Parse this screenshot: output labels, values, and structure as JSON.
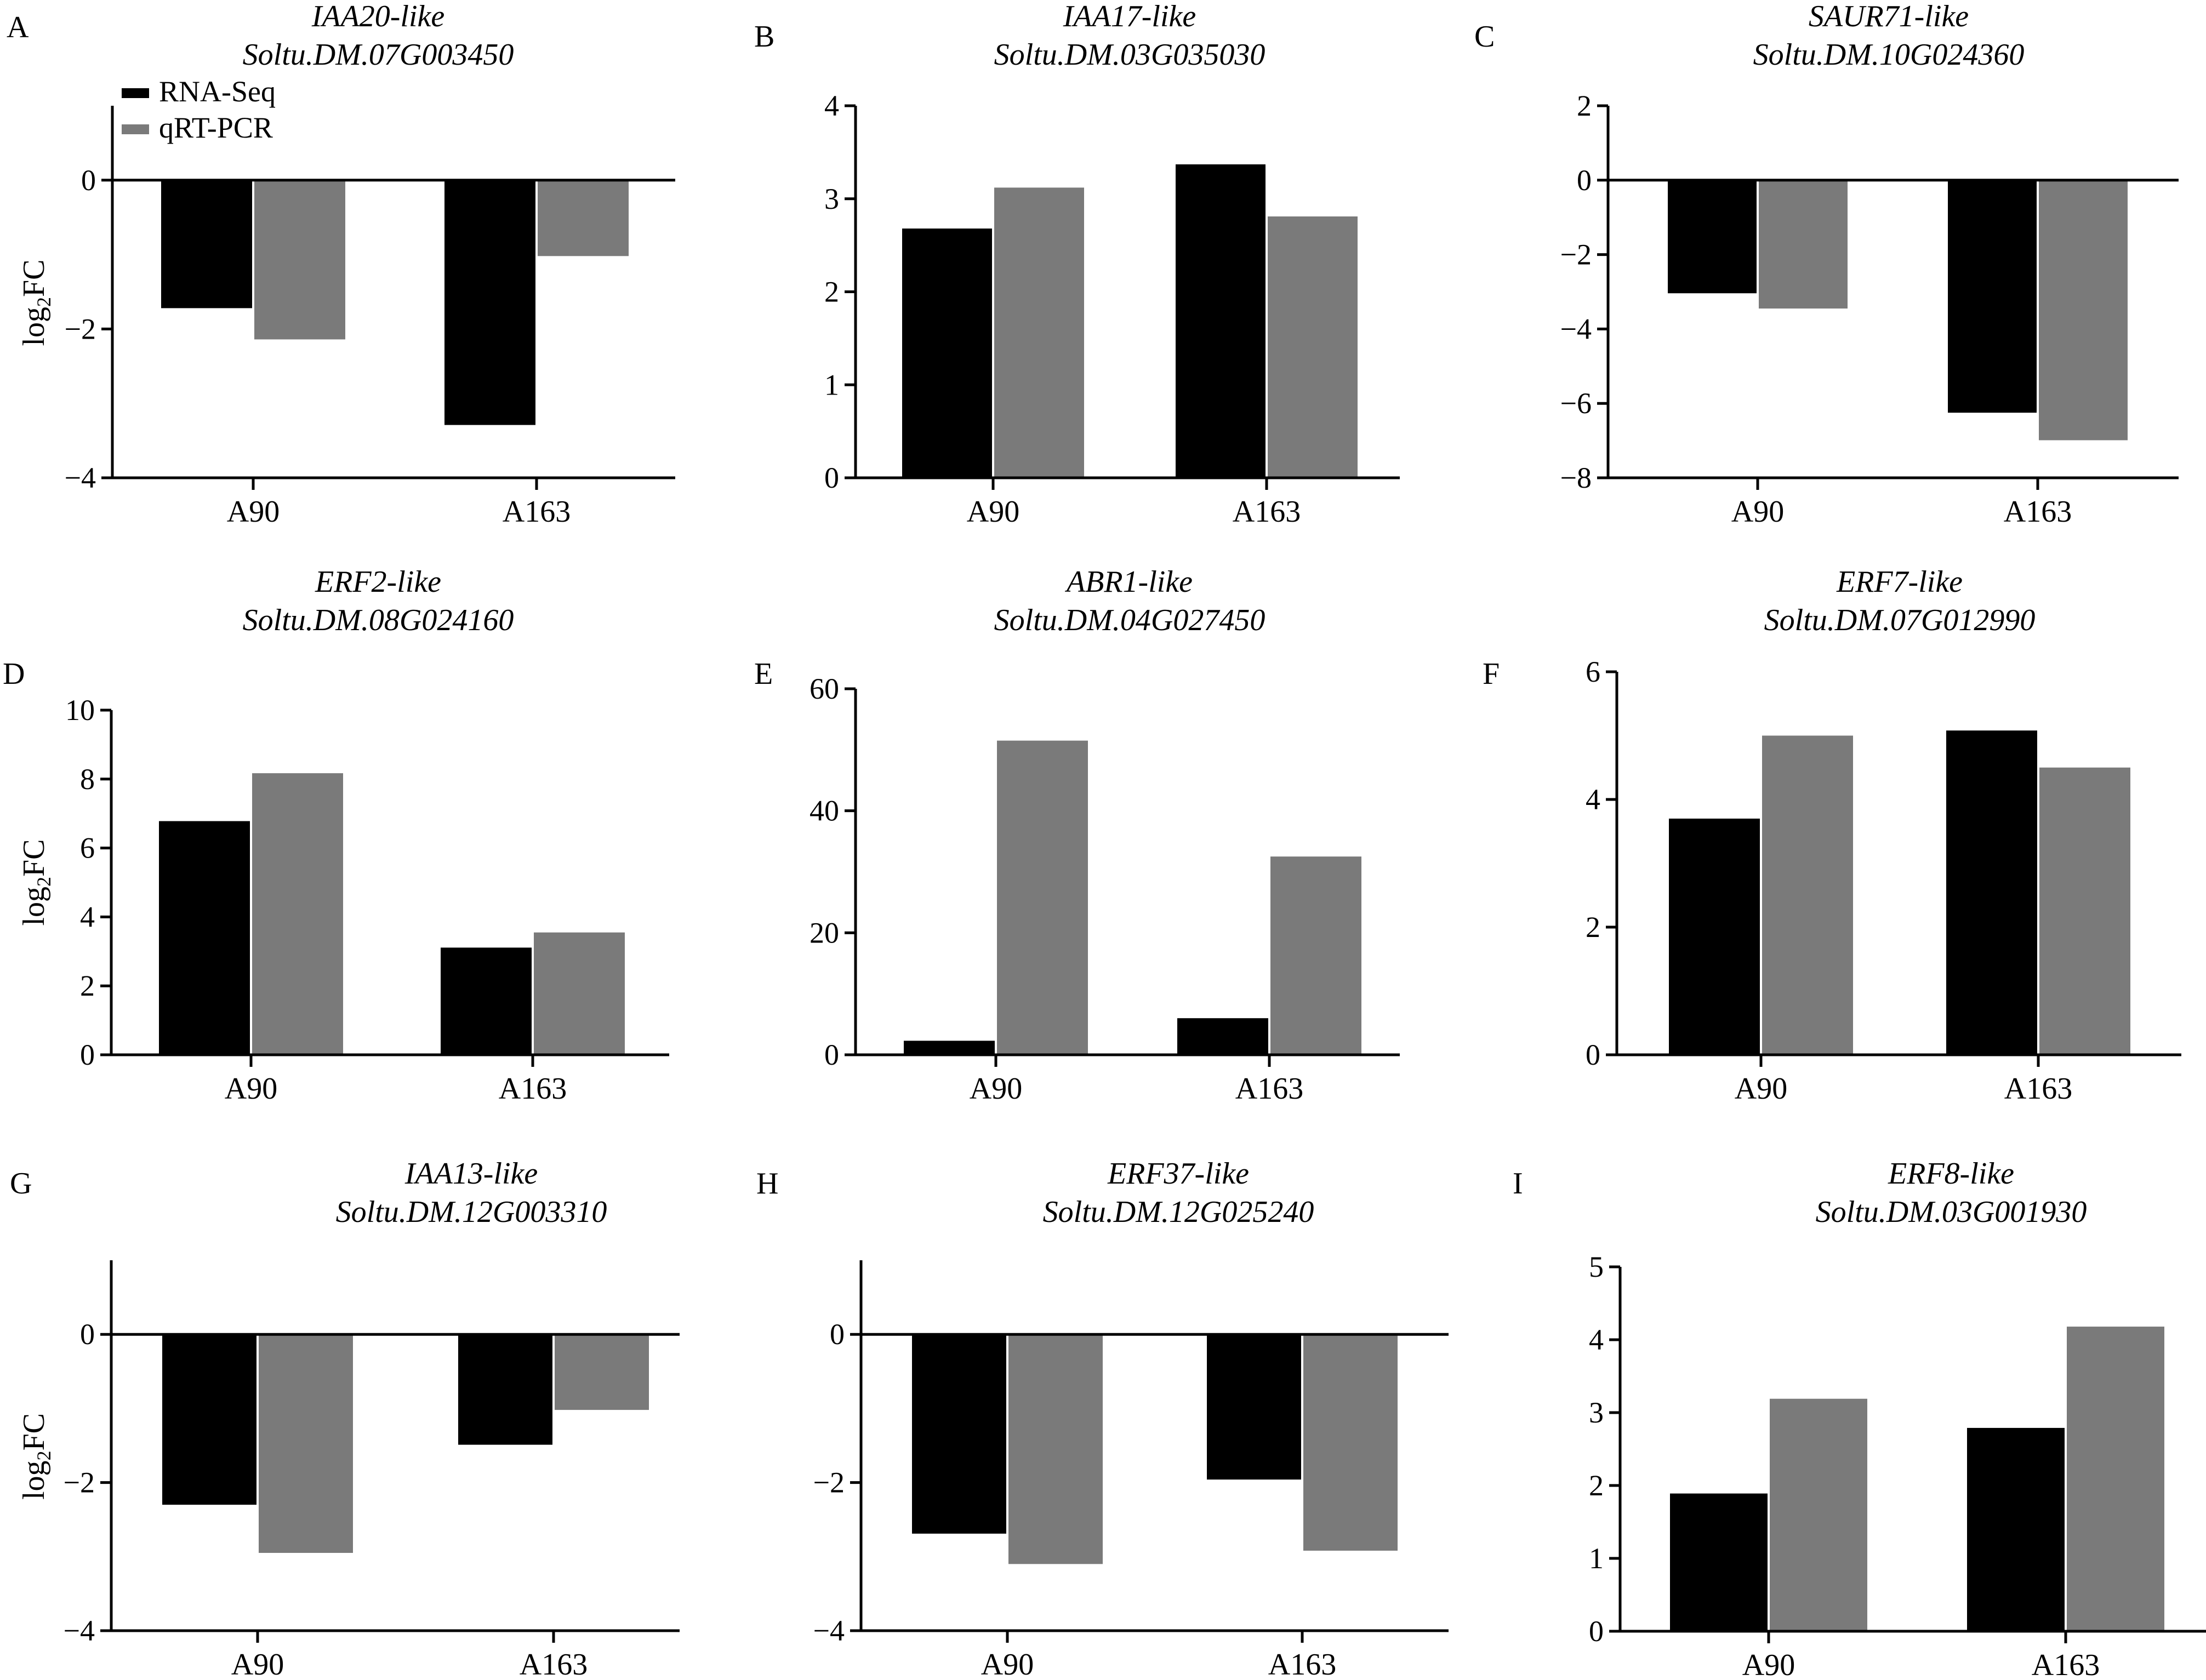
{
  "figure": {
    "legend": {
      "items": [
        {
          "label": "RNA-Seq",
          "color": "#000000"
        },
        {
          "label": "qRT-PCR",
          "color": "#7a7a7a"
        }
      ],
      "placement": "top-left of panel A"
    },
    "ylabel_main": "log",
    "ylabel_sub": "2",
    "ylabel_tail": "FC"
  },
  "chart_data": [
    {
      "panel": "A",
      "type": "bar",
      "title_gene": "IAA20-like",
      "title_id": "Soltu.DM.07G003450",
      "categories": [
        "A90",
        "A163"
      ],
      "ylabel": "log2FC",
      "ylim": [
        -4,
        1
      ],
      "yticks": [
        0,
        -2,
        -4
      ],
      "ytick_labels": [
        "0",
        "−2",
        "−4"
      ],
      "zero_line": true,
      "series": [
        {
          "name": "RNA-Seq",
          "values": [
            -1.72,
            -3.29
          ]
        },
        {
          "name": "qRT-PCR",
          "values": [
            -2.14,
            -1.02
          ]
        }
      ],
      "show_ylabel": true
    },
    {
      "panel": "B",
      "type": "bar",
      "title_gene": "IAA17-like",
      "title_id": "Soltu.DM.03G035030",
      "categories": [
        "A90",
        "A163"
      ],
      "ylabel": "",
      "ylim": [
        0,
        4
      ],
      "yticks": [
        4,
        3,
        2,
        1,
        0
      ],
      "ytick_labels": [
        "4",
        "3",
        "2",
        "1",
        "0"
      ],
      "zero_line": false,
      "series": [
        {
          "name": "RNA-Seq",
          "values": [
            2.68,
            3.37
          ]
        },
        {
          "name": "qRT-PCR",
          "values": [
            3.12,
            2.81
          ]
        }
      ],
      "show_ylabel": false
    },
    {
      "panel": "C",
      "type": "bar",
      "title_gene": "SAUR71-like",
      "title_id": "Soltu.DM.10G024360",
      "categories": [
        "A90",
        "A163"
      ],
      "ylabel": "",
      "ylim": [
        -8,
        2
      ],
      "yticks": [
        2,
        0,
        -2,
        -4,
        -6,
        -8
      ],
      "ytick_labels": [
        "2",
        "0",
        "−2",
        "−4",
        "−6",
        "−8"
      ],
      "zero_line": true,
      "series": [
        {
          "name": "RNA-Seq",
          "values": [
            -3.04,
            -6.25
          ]
        },
        {
          "name": "qRT-PCR",
          "values": [
            -3.45,
            -6.99
          ]
        }
      ],
      "show_ylabel": false
    },
    {
      "panel": "D",
      "type": "bar",
      "title_gene": "ERF2-like",
      "title_id": "Soltu.DM.08G024160",
      "categories": [
        "A90",
        "A163"
      ],
      "ylabel": "log2FC",
      "ylim": [
        0,
        10
      ],
      "yticks": [
        10,
        8,
        6,
        4,
        2,
        0
      ],
      "ytick_labels": [
        "10",
        "8",
        "6",
        "4",
        "2",
        "0"
      ],
      "zero_line": false,
      "series": [
        {
          "name": "RNA-Seq",
          "values": [
            6.78,
            3.11
          ]
        },
        {
          "name": "qRT-PCR",
          "values": [
            8.17,
            3.55
          ]
        }
      ],
      "show_ylabel": true
    },
    {
      "panel": "E",
      "type": "bar",
      "title_gene": "ABR1-like",
      "title_id": "Soltu.DM.04G027450",
      "categories": [
        "A90",
        "A163"
      ],
      "ylabel": "",
      "ylim": [
        0,
        60
      ],
      "yticks": [
        60,
        40,
        20,
        0
      ],
      "ytick_labels": [
        "60",
        "40",
        "20",
        "0"
      ],
      "zero_line": false,
      "series": [
        {
          "name": "RNA-Seq",
          "values": [
            2.3,
            6.0
          ]
        },
        {
          "name": "qRT-PCR",
          "values": [
            51.5,
            32.5
          ]
        }
      ],
      "show_ylabel": false
    },
    {
      "panel": "F",
      "type": "bar",
      "title_gene": "ERF7-like",
      "title_id": "Soltu.DM.07G012990",
      "categories": [
        "A90",
        "A163"
      ],
      "ylabel": "",
      "ylim": [
        0,
        6
      ],
      "yticks": [
        6,
        4,
        2,
        0
      ],
      "ytick_labels": [
        "6",
        "4",
        "2",
        "0"
      ],
      "zero_line": false,
      "series": [
        {
          "name": "RNA-Seq",
          "values": [
            3.7,
            5.08
          ]
        },
        {
          "name": "qRT-PCR",
          "values": [
            5.0,
            4.5
          ]
        }
      ],
      "show_ylabel": false
    },
    {
      "panel": "G",
      "type": "bar",
      "title_gene": "IAA13-like",
      "title_id": "Soltu.DM.12G003310",
      "categories": [
        "A90",
        "A163"
      ],
      "ylabel": "log2FC",
      "ylim": [
        -4,
        1
      ],
      "yticks": [
        0,
        -2,
        -4
      ],
      "ytick_labels": [
        "0",
        "−2",
        "−4"
      ],
      "zero_line": true,
      "series": [
        {
          "name": "RNA-Seq",
          "values": [
            -2.3,
            -1.49
          ]
        },
        {
          "name": "qRT-PCR",
          "values": [
            -2.95,
            -1.02
          ]
        }
      ],
      "show_ylabel": true
    },
    {
      "panel": "H",
      "type": "bar",
      "title_gene": "ERF37-like",
      "title_id": "Soltu.DM.12G025240",
      "categories": [
        "A90",
        "A163"
      ],
      "ylabel": "",
      "ylim": [
        -4,
        1
      ],
      "yticks": [
        0,
        -2,
        -4
      ],
      "ytick_labels": [
        "0",
        "−2",
        "−4"
      ],
      "zero_line": true,
      "series": [
        {
          "name": "RNA-Seq",
          "values": [
            -2.69,
            -1.96
          ]
        },
        {
          "name": "qRT-PCR",
          "values": [
            -3.1,
            -2.92
          ]
        }
      ],
      "show_ylabel": false
    },
    {
      "panel": "I",
      "type": "bar",
      "title_gene": "ERF8-like",
      "title_id": "Soltu.DM.03G001930",
      "categories": [
        "A90",
        "A163"
      ],
      "ylabel": "",
      "ylim": [
        0,
        5
      ],
      "yticks": [
        5,
        4,
        3,
        2,
        1,
        0
      ],
      "ytick_labels": [
        "5",
        "4",
        "3",
        "2",
        "1",
        "0"
      ],
      "zero_line": false,
      "series": [
        {
          "name": "RNA-Seq",
          "values": [
            1.89,
            2.79
          ]
        },
        {
          "name": "qRT-PCR",
          "values": [
            3.19,
            4.18
          ]
        }
      ],
      "show_ylabel": false
    }
  ]
}
